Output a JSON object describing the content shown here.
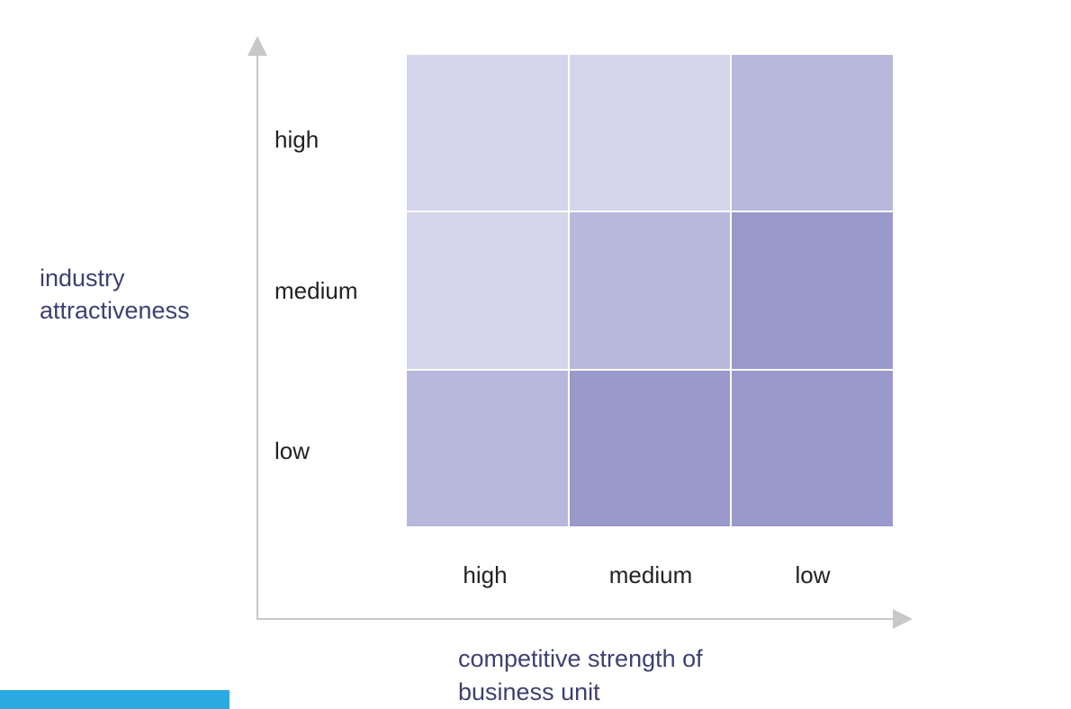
{
  "y_axis": {
    "title_line1": "industry",
    "title_line2": "attractiveness",
    "levels": [
      "high",
      "medium",
      "low"
    ]
  },
  "x_axis": {
    "title_line1": "competitive strength of",
    "title_line2": "business unit",
    "levels": [
      "high",
      "medium",
      "low"
    ]
  },
  "matrix": {
    "shade_colors": {
      "light": "#d4d4ea",
      "mid": "#b8b8dc",
      "dark": "#9999cc"
    },
    "rows": [
      [
        "light",
        "light",
        "mid"
      ],
      [
        "light",
        "mid",
        "dark"
      ],
      [
        "mid",
        "dark",
        "dark"
      ]
    ]
  },
  "colors": {
    "axis_line": "#c8c8c8",
    "title_text": "#3f3f70",
    "accent_bar": "#29abe2"
  }
}
